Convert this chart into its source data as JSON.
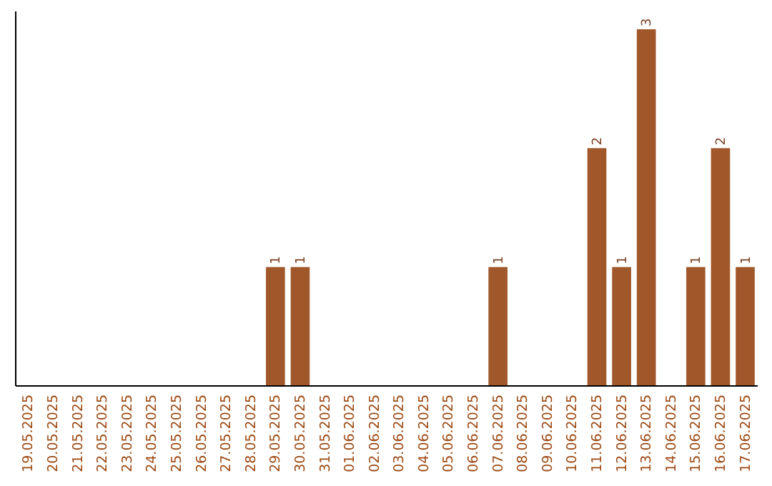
{
  "chart_data": {
    "type": "bar",
    "categories": [
      "19.05.2025",
      "20.05.2025",
      "21.05.2025",
      "22.05.2025",
      "23.05.2025",
      "24.05.2025",
      "25.05.2025",
      "26.05.2025",
      "27.05.2025",
      "28.05.2025",
      "29.05.2025",
      "30.05.2025",
      "31.05.2025",
      "01.06.2025",
      "02.06.2025",
      "03.06.2025",
      "04.06.2025",
      "05.06.2025",
      "06.06.2025",
      "07.06.2025",
      "08.06.2025",
      "09.06.2025",
      "10.06.2025",
      "11.06.2025",
      "12.06.2025",
      "13.06.2025",
      "14.06.2025",
      "15.06.2025",
      "16.06.2025",
      "17.06.2025"
    ],
    "values": [
      0,
      0,
      0,
      0,
      0,
      0,
      0,
      0,
      0,
      0,
      1,
      1,
      0,
      0,
      0,
      0,
      0,
      0,
      0,
      1,
      0,
      0,
      0,
      2,
      1,
      3,
      0,
      1,
      2,
      1
    ],
    "value_labels": [
      null,
      null,
      null,
      null,
      null,
      null,
      null,
      null,
      null,
      null,
      "1",
      "1",
      null,
      null,
      null,
      null,
      null,
      null,
      null,
      "1",
      null,
      null,
      null,
      "2",
      "1",
      "3",
      null,
      "1",
      "2",
      "1"
    ],
    "color": "#a0582a",
    "ylim": [
      0,
      3.15
    ],
    "tick_labels": "x"
  }
}
